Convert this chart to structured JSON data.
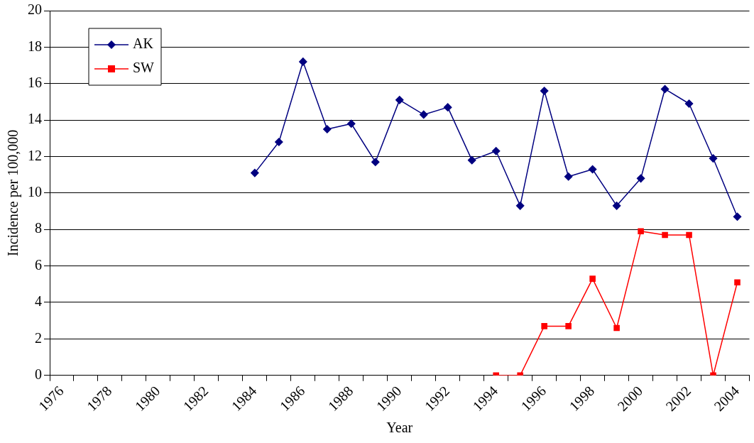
{
  "chart_data": {
    "type": "line",
    "xlabel": "Year",
    "ylabel": "Incidence per 100,000",
    "categories": [
      "1976",
      null,
      "1978",
      null,
      "1980",
      null,
      "1982",
      null,
      "1984",
      null,
      "1986",
      null,
      "1988",
      null,
      "1990",
      null,
      "1992",
      null,
      "1994",
      null,
      "1996",
      null,
      "1998",
      null,
      "2000",
      null,
      "2002",
      null,
      "2004"
    ],
    "series": [
      {
        "name": "AK",
        "color": "#000080",
        "marker": "diamond",
        "values": [
          null,
          null,
          null,
          null,
          null,
          null,
          null,
          null,
          11.1,
          12.8,
          17.2,
          13.5,
          13.8,
          11.7,
          15.1,
          14.3,
          14.7,
          11.8,
          12.3,
          9.3,
          15.6,
          10.9,
          11.3,
          9.3,
          10.8,
          15.7,
          14.9,
          11.9,
          8.7
        ]
      },
      {
        "name": "SW",
        "color": "#ff0000",
        "marker": "square",
        "values": [
          null,
          null,
          null,
          null,
          null,
          null,
          null,
          null,
          null,
          null,
          null,
          null,
          null,
          null,
          null,
          null,
          null,
          null,
          0,
          0,
          2.7,
          2.7,
          5.3,
          2.6,
          7.9,
          7.7,
          7.7,
          0,
          5.1
        ]
      }
    ],
    "ylim": [
      0,
      20
    ],
    "yticks": [
      0,
      2,
      4,
      6,
      8,
      10,
      12,
      14,
      16,
      18,
      20
    ],
    "grid": "y",
    "legend": "top left"
  }
}
